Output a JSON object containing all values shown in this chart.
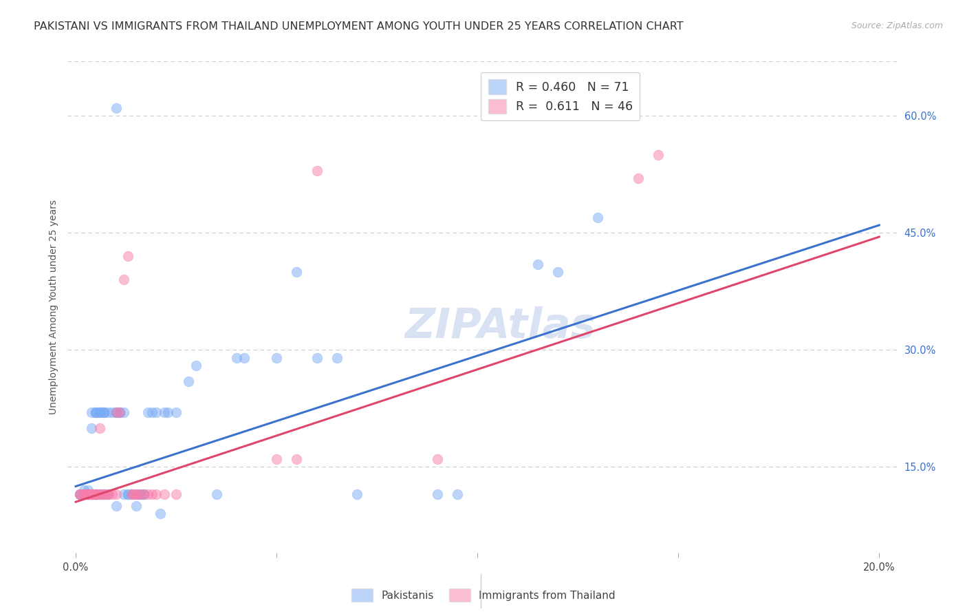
{
  "title": "PAKISTANI VS IMMIGRANTS FROM THAILAND UNEMPLOYMENT AMONG YOUTH UNDER 25 YEARS CORRELATION CHART",
  "source": "Source: ZipAtlas.com",
  "ylabel": "Unemployment Among Youth under 25 years",
  "y_ticks": [
    0.15,
    0.3,
    0.45,
    0.6
  ],
  "y_tick_labels": [
    "15.0%",
    "30.0%",
    "45.0%",
    "60.0%"
  ],
  "xlim": [
    -0.002,
    0.205
  ],
  "ylim": [
    0.04,
    0.67
  ],
  "blue_R": 0.46,
  "blue_N": 71,
  "pink_R": 0.611,
  "pink_N": 46,
  "legend_label_blue": "Pakistanis",
  "legend_label_pink": "Immigrants from Thailand",
  "watermark": "ZIPAtlas",
  "blue_scatter": [
    [
      0.001,
      0.115
    ],
    [
      0.001,
      0.115
    ],
    [
      0.002,
      0.115
    ],
    [
      0.002,
      0.115
    ],
    [
      0.002,
      0.12
    ],
    [
      0.003,
      0.115
    ],
    [
      0.003,
      0.115
    ],
    [
      0.003,
      0.115
    ],
    [
      0.003,
      0.115
    ],
    [
      0.003,
      0.115
    ],
    [
      0.003,
      0.12
    ],
    [
      0.004,
      0.115
    ],
    [
      0.004,
      0.115
    ],
    [
      0.004,
      0.2
    ],
    [
      0.004,
      0.22
    ],
    [
      0.005,
      0.115
    ],
    [
      0.005,
      0.115
    ],
    [
      0.005,
      0.22
    ],
    [
      0.005,
      0.22
    ],
    [
      0.005,
      0.22
    ],
    [
      0.006,
      0.115
    ],
    [
      0.006,
      0.115
    ],
    [
      0.006,
      0.22
    ],
    [
      0.006,
      0.22
    ],
    [
      0.006,
      0.22
    ],
    [
      0.007,
      0.115
    ],
    [
      0.007,
      0.22
    ],
    [
      0.007,
      0.22
    ],
    [
      0.007,
      0.22
    ],
    [
      0.008,
      0.115
    ],
    [
      0.008,
      0.22
    ],
    [
      0.009,
      0.22
    ],
    [
      0.01,
      0.1
    ],
    [
      0.01,
      0.22
    ],
    [
      0.01,
      0.22
    ],
    [
      0.011,
      0.22
    ],
    [
      0.011,
      0.22
    ],
    [
      0.012,
      0.22
    ],
    [
      0.012,
      0.115
    ],
    [
      0.013,
      0.115
    ],
    [
      0.013,
      0.115
    ],
    [
      0.014,
      0.115
    ],
    [
      0.015,
      0.1
    ],
    [
      0.015,
      0.115
    ],
    [
      0.016,
      0.115
    ],
    [
      0.016,
      0.115
    ],
    [
      0.017,
      0.115
    ],
    [
      0.017,
      0.115
    ],
    [
      0.018,
      0.22
    ],
    [
      0.019,
      0.22
    ],
    [
      0.02,
      0.22
    ],
    [
      0.021,
      0.09
    ],
    [
      0.022,
      0.22
    ],
    [
      0.023,
      0.22
    ],
    [
      0.025,
      0.22
    ],
    [
      0.028,
      0.26
    ],
    [
      0.03,
      0.28
    ],
    [
      0.035,
      0.115
    ],
    [
      0.04,
      0.29
    ],
    [
      0.042,
      0.29
    ],
    [
      0.05,
      0.29
    ],
    [
      0.06,
      0.29
    ],
    [
      0.065,
      0.29
    ],
    [
      0.07,
      0.115
    ],
    [
      0.09,
      0.115
    ],
    [
      0.095,
      0.115
    ],
    [
      0.12,
      0.4
    ],
    [
      0.13,
      0.47
    ],
    [
      0.01,
      0.61
    ],
    [
      0.055,
      0.4
    ],
    [
      0.115,
      0.41
    ]
  ],
  "pink_scatter": [
    [
      0.001,
      0.115
    ],
    [
      0.001,
      0.115
    ],
    [
      0.002,
      0.115
    ],
    [
      0.002,
      0.115
    ],
    [
      0.002,
      0.115
    ],
    [
      0.003,
      0.115
    ],
    [
      0.003,
      0.115
    ],
    [
      0.003,
      0.115
    ],
    [
      0.003,
      0.115
    ],
    [
      0.004,
      0.115
    ],
    [
      0.004,
      0.115
    ],
    [
      0.004,
      0.115
    ],
    [
      0.005,
      0.115
    ],
    [
      0.005,
      0.115
    ],
    [
      0.005,
      0.115
    ],
    [
      0.005,
      0.115
    ],
    [
      0.006,
      0.115
    ],
    [
      0.006,
      0.115
    ],
    [
      0.006,
      0.2
    ],
    [
      0.007,
      0.115
    ],
    [
      0.007,
      0.115
    ],
    [
      0.008,
      0.115
    ],
    [
      0.008,
      0.115
    ],
    [
      0.009,
      0.115
    ],
    [
      0.01,
      0.115
    ],
    [
      0.01,
      0.22
    ],
    [
      0.011,
      0.22
    ],
    [
      0.012,
      0.39
    ],
    [
      0.013,
      0.42
    ],
    [
      0.014,
      0.115
    ],
    [
      0.014,
      0.115
    ],
    [
      0.015,
      0.115
    ],
    [
      0.015,
      0.115
    ],
    [
      0.016,
      0.115
    ],
    [
      0.017,
      0.115
    ],
    [
      0.018,
      0.115
    ],
    [
      0.019,
      0.115
    ],
    [
      0.02,
      0.115
    ],
    [
      0.022,
      0.115
    ],
    [
      0.025,
      0.115
    ],
    [
      0.05,
      0.16
    ],
    [
      0.055,
      0.16
    ],
    [
      0.06,
      0.53
    ],
    [
      0.09,
      0.16
    ],
    [
      0.14,
      0.52
    ],
    [
      0.145,
      0.55
    ]
  ],
  "blue_line_x": [
    0.0,
    0.2
  ],
  "blue_line_y": [
    0.125,
    0.46
  ],
  "pink_line_x": [
    0.0,
    0.2
  ],
  "pink_line_y": [
    0.105,
    0.445
  ],
  "bg_color": "#ffffff",
  "blue_color": "#7aabf5",
  "pink_color": "#f87daa",
  "blue_line_color": "#3a72cc",
  "pink_line_color": "#e0466b",
  "title_fontsize": 11.5,
  "source_fontsize": 9
}
